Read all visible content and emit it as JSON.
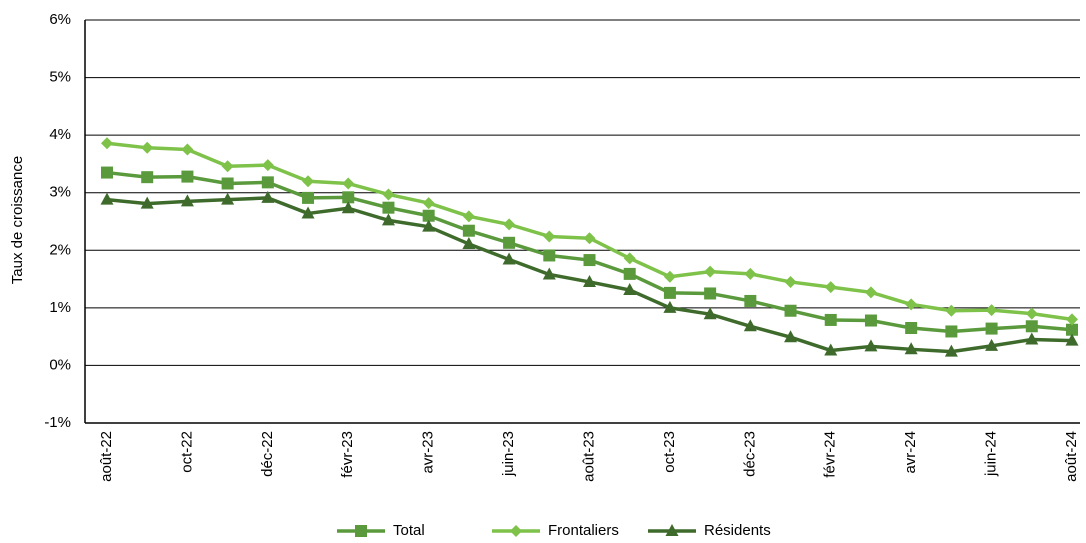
{
  "chart_data": {
    "type": "line",
    "title": "",
    "xlabel": "",
    "ylabel": "Taux de croissance",
    "ylim": [
      -1,
      6
    ],
    "yticks": [
      -1,
      0,
      1,
      2,
      3,
      4,
      5,
      6
    ],
    "ytick_labels": [
      "-1%",
      "0%",
      "1%",
      "2%",
      "3%",
      "4%",
      "5%",
      "6%"
    ],
    "x": [
      "août-22",
      "sept-22",
      "oct-22",
      "nov-22",
      "déc-22",
      "janv-23",
      "févr-23",
      "mars-23",
      "avr-23",
      "mai-23",
      "juin-23",
      "juil-23",
      "août-23",
      "sept-23",
      "oct-23",
      "nov-23",
      "déc-23",
      "janv-24",
      "févr-24",
      "mars-24",
      "avr-24",
      "mai-24",
      "juin-24",
      "juil-24",
      "août-24"
    ],
    "xtick_labels": [
      "août-22",
      "",
      "oct-22",
      "",
      "déc-22",
      "",
      "févr-23",
      "",
      "avr-23",
      "",
      "juin-23",
      "",
      "août-23",
      "",
      "oct-23",
      "",
      "déc-23",
      "",
      "févr-24",
      "",
      "avr-24",
      "",
      "juin-24",
      "",
      "août-24"
    ],
    "grid": true,
    "legend_position": "bottom",
    "series": [
      {
        "name": "Total",
        "color": "#5a9a3c",
        "marker": "square",
        "values": [
          3.35,
          3.27,
          3.28,
          3.16,
          3.18,
          2.91,
          2.92,
          2.74,
          2.6,
          2.34,
          2.13,
          1.91,
          1.83,
          1.59,
          1.26,
          1.25,
          1.12,
          0.95,
          0.79,
          0.78,
          0.65,
          0.59,
          0.64,
          0.68,
          0.62
        ]
      },
      {
        "name": "Frontaliers",
        "color": "#7ec24a",
        "marker": "diamond",
        "values": [
          3.86,
          3.78,
          3.75,
          3.46,
          3.48,
          3.2,
          3.16,
          2.97,
          2.82,
          2.59,
          2.45,
          2.24,
          2.21,
          1.86,
          1.54,
          1.63,
          1.59,
          1.45,
          1.36,
          1.27,
          1.06,
          0.95,
          0.96,
          0.9,
          0.8
        ]
      },
      {
        "name": "Résidents",
        "color": "#3e6b2b",
        "marker": "triangle",
        "values": [
          2.88,
          2.81,
          2.85,
          2.88,
          2.91,
          2.64,
          2.73,
          2.52,
          2.41,
          2.11,
          1.84,
          1.58,
          1.45,
          1.31,
          1.0,
          0.89,
          0.68,
          0.49,
          0.26,
          0.33,
          0.28,
          0.24,
          0.34,
          0.45,
          0.43
        ]
      }
    ]
  }
}
